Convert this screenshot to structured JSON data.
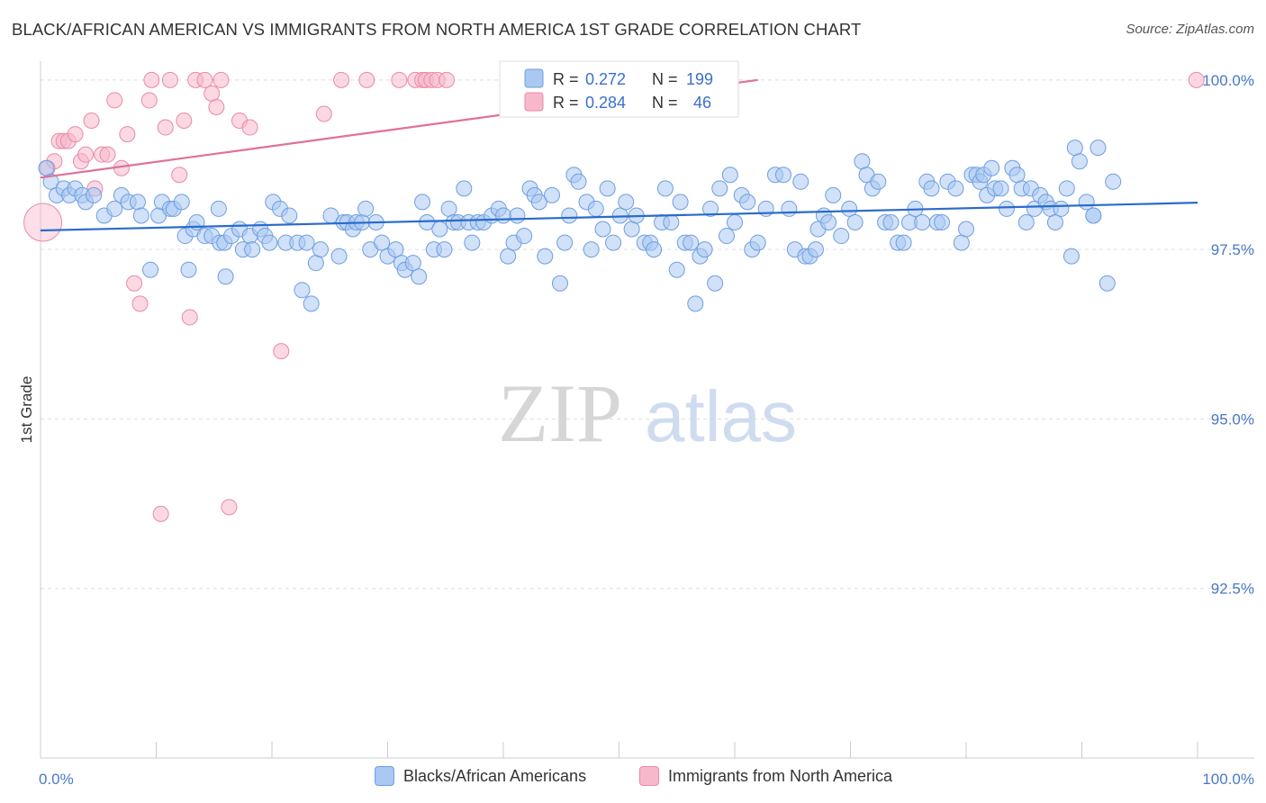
{
  "title": "BLACK/AFRICAN AMERICAN VS IMMIGRANTS FROM NORTH AMERICA 1ST GRADE CORRELATION CHART",
  "source": "Source: ZipAtlas.com",
  "watermark": {
    "zip": "ZIP",
    "atlas": "atlas"
  },
  "colors": {
    "blue_fill": "#a9c8f2",
    "blue_stroke": "#6f9ee0",
    "blue_line": "#2a6bcc",
    "pink_fill": "#f8b8cb",
    "pink_stroke": "#e88aa8",
    "pink_line": "#e0709a",
    "tick_text": "#4a78c8",
    "grid": "#dddddd"
  },
  "legend": {
    "r_label": "R =",
    "n_label": "N =",
    "series": [
      {
        "r": "0.272",
        "n": "199"
      },
      {
        "r": "0.284",
        "n": "46"
      }
    ]
  },
  "bottom_legend": [
    "Blacks/African Americans",
    "Immigrants from North America"
  ],
  "chart_data": {
    "type": "scatter",
    "title": "BLACK/AFRICAN AMERICAN VS IMMIGRANTS FROM NORTH AMERICA 1ST GRADE CORRELATION CHART",
    "xlabel": "",
    "ylabel": "1st Grade",
    "xlim": [
      0,
      100
    ],
    "ylim": [
      90.0,
      100.25
    ],
    "x_tick_labels": [
      "0.0%",
      "100.0%"
    ],
    "y_ticks": [
      100.0,
      97.5,
      95.0,
      92.5
    ],
    "y_tick_labels": [
      "100.0%",
      "97.5%",
      "95.0%",
      "92.5%"
    ],
    "series": [
      {
        "name": "Blacks/African Americans",
        "R": 0.272,
        "N": 199,
        "trend": {
          "x": [
            0,
            100
          ],
          "y": [
            97.78,
            98.19
          ]
        },
        "points": [
          [
            0.5,
            98.7
          ],
          [
            0.9,
            98.5
          ],
          [
            1.4,
            98.3
          ],
          [
            2.0,
            98.4
          ],
          [
            2.5,
            98.3
          ],
          [
            3.0,
            98.4
          ],
          [
            3.6,
            98.3
          ],
          [
            3.9,
            98.2
          ],
          [
            4.6,
            98.3
          ],
          [
            5.5,
            98.0
          ],
          [
            6.4,
            98.1
          ],
          [
            7.0,
            98.3
          ],
          [
            7.6,
            98.2
          ],
          [
            8.4,
            98.2
          ],
          [
            8.7,
            98.0
          ],
          [
            9.5,
            97.2
          ],
          [
            10.2,
            98.0
          ],
          [
            10.5,
            98.2
          ],
          [
            11.2,
            98.1
          ],
          [
            11.5,
            98.1
          ],
          [
            12.2,
            98.2
          ],
          [
            12.5,
            97.7
          ],
          [
            12.8,
            97.2
          ],
          [
            13.2,
            97.8
          ],
          [
            13.5,
            97.9
          ],
          [
            14.2,
            97.7
          ],
          [
            14.8,
            97.7
          ],
          [
            15.4,
            98.1
          ],
          [
            15.5,
            97.6
          ],
          [
            15.9,
            97.6
          ],
          [
            16.0,
            97.1
          ],
          [
            16.5,
            97.7
          ],
          [
            17.2,
            97.8
          ],
          [
            17.5,
            97.5
          ],
          [
            18.1,
            97.7
          ],
          [
            18.3,
            97.5
          ],
          [
            19.0,
            97.8
          ],
          [
            19.4,
            97.7
          ],
          [
            19.8,
            97.6
          ],
          [
            20.1,
            98.2
          ],
          [
            20.7,
            98.1
          ],
          [
            21.2,
            97.6
          ],
          [
            21.5,
            98.0
          ],
          [
            22.2,
            97.6
          ],
          [
            22.6,
            96.9
          ],
          [
            23.0,
            97.6
          ],
          [
            23.4,
            96.7
          ],
          [
            23.8,
            97.3
          ],
          [
            24.2,
            97.5
          ],
          [
            25.1,
            98.0
          ],
          [
            25.8,
            97.4
          ],
          [
            26.2,
            97.9
          ],
          [
            26.5,
            97.9
          ],
          [
            27.0,
            97.8
          ],
          [
            27.3,
            97.9
          ],
          [
            27.8,
            97.9
          ],
          [
            28.1,
            98.1
          ],
          [
            28.5,
            97.5
          ],
          [
            29.0,
            97.9
          ],
          [
            29.5,
            97.6
          ],
          [
            30.0,
            97.4
          ],
          [
            30.7,
            97.5
          ],
          [
            31.2,
            97.3
          ],
          [
            31.5,
            97.2
          ],
          [
            32.2,
            97.3
          ],
          [
            32.7,
            97.1
          ],
          [
            33.0,
            98.2
          ],
          [
            33.4,
            97.9
          ],
          [
            34.0,
            97.5
          ],
          [
            34.5,
            97.8
          ],
          [
            34.9,
            97.5
          ],
          [
            35.3,
            98.1
          ],
          [
            35.7,
            97.9
          ],
          [
            36.1,
            97.9
          ],
          [
            36.6,
            98.4
          ],
          [
            37.0,
            97.9
          ],
          [
            37.3,
            97.6
          ],
          [
            37.8,
            97.9
          ],
          [
            38.3,
            97.9
          ],
          [
            39.0,
            98.0
          ],
          [
            39.6,
            98.1
          ],
          [
            40.0,
            98.0
          ],
          [
            40.4,
            97.4
          ],
          [
            40.9,
            97.6
          ],
          [
            41.2,
            98.0
          ],
          [
            41.8,
            97.7
          ],
          [
            42.3,
            98.4
          ],
          [
            42.7,
            98.3
          ],
          [
            43.1,
            98.2
          ],
          [
            43.6,
            97.4
          ],
          [
            44.2,
            98.3
          ],
          [
            44.9,
            97.0
          ],
          [
            45.3,
            97.6
          ],
          [
            45.7,
            98.0
          ],
          [
            46.1,
            98.6
          ],
          [
            46.5,
            98.5
          ],
          [
            47.2,
            98.2
          ],
          [
            47.6,
            97.5
          ],
          [
            48.0,
            98.1
          ],
          [
            48.6,
            97.8
          ],
          [
            49.0,
            98.4
          ],
          [
            49.5,
            97.6
          ],
          [
            50.1,
            98.0
          ],
          [
            50.6,
            98.2
          ],
          [
            51.1,
            97.8
          ],
          [
            51.5,
            98.0
          ],
          [
            52.2,
            97.6
          ],
          [
            52.7,
            97.6
          ],
          [
            53.0,
            97.5
          ],
          [
            53.7,
            97.9
          ],
          [
            54.0,
            98.4
          ],
          [
            54.5,
            97.9
          ],
          [
            55.0,
            97.2
          ],
          [
            55.3,
            98.2
          ],
          [
            55.7,
            97.6
          ],
          [
            56.2,
            97.6
          ],
          [
            56.6,
            96.7
          ],
          [
            57.0,
            97.4
          ],
          [
            57.4,
            97.5
          ],
          [
            57.9,
            98.1
          ],
          [
            58.3,
            97.0
          ],
          [
            58.7,
            98.4
          ],
          [
            59.3,
            97.7
          ],
          [
            59.6,
            98.6
          ],
          [
            60.0,
            97.9
          ],
          [
            60.6,
            98.3
          ],
          [
            61.1,
            98.2
          ],
          [
            61.5,
            97.5
          ],
          [
            62.0,
            97.6
          ],
          [
            62.7,
            98.1
          ],
          [
            63.5,
            98.6
          ],
          [
            64.2,
            98.6
          ],
          [
            64.7,
            98.1
          ],
          [
            65.2,
            97.5
          ],
          [
            65.7,
            98.5
          ],
          [
            66.1,
            97.4
          ],
          [
            66.5,
            97.4
          ],
          [
            67.0,
            97.5
          ],
          [
            67.2,
            97.8
          ],
          [
            67.7,
            98.0
          ],
          [
            68.1,
            97.9
          ],
          [
            68.5,
            98.3
          ],
          [
            69.2,
            97.7
          ],
          [
            69.9,
            98.1
          ],
          [
            70.4,
            97.9
          ],
          [
            71.0,
            98.8
          ],
          [
            71.4,
            98.6
          ],
          [
            71.9,
            98.4
          ],
          [
            72.4,
            98.5
          ],
          [
            73.0,
            97.9
          ],
          [
            73.5,
            97.9
          ],
          [
            74.1,
            97.6
          ],
          [
            74.6,
            97.6
          ],
          [
            75.1,
            97.9
          ],
          [
            75.6,
            98.1
          ],
          [
            76.2,
            97.9
          ],
          [
            76.6,
            98.5
          ],
          [
            77.0,
            98.4
          ],
          [
            77.5,
            97.9
          ],
          [
            77.9,
            97.9
          ],
          [
            78.4,
            98.5
          ],
          [
            79.1,
            98.4
          ],
          [
            79.6,
            97.6
          ],
          [
            80.0,
            97.8
          ],
          [
            80.5,
            98.6
          ],
          [
            80.9,
            98.6
          ],
          [
            81.2,
            98.5
          ],
          [
            81.5,
            98.6
          ],
          [
            81.8,
            98.3
          ],
          [
            82.2,
            98.7
          ],
          [
            82.5,
            98.4
          ],
          [
            83.0,
            98.4
          ],
          [
            83.5,
            98.1
          ],
          [
            84.0,
            98.7
          ],
          [
            84.4,
            98.6
          ],
          [
            84.8,
            98.4
          ],
          [
            85.2,
            97.9
          ],
          [
            85.6,
            98.4
          ],
          [
            85.9,
            98.1
          ],
          [
            86.4,
            98.3
          ],
          [
            86.9,
            98.2
          ],
          [
            87.3,
            98.1
          ],
          [
            87.7,
            97.9
          ],
          [
            88.2,
            98.1
          ],
          [
            88.7,
            98.4
          ],
          [
            89.1,
            97.4
          ],
          [
            89.4,
            99.0
          ],
          [
            89.8,
            98.8
          ],
          [
            90.4,
            98.2
          ],
          [
            91.0,
            98.0
          ],
          [
            91.4,
            99.0
          ],
          [
            92.2,
            97.0
          ],
          [
            92.7,
            98.5
          ],
          [
            91.0,
            98.0
          ]
        ]
      },
      {
        "name": "Immigrants from North America",
        "R": 0.284,
        "N": 46,
        "trend": {
          "x": [
            0,
            62
          ],
          "y": [
            98.56,
            100.0
          ]
        },
        "points": [
          [
            0.2,
            97.9
          ],
          [
            0.6,
            98.7
          ],
          [
            1.2,
            98.8
          ],
          [
            1.6,
            99.1
          ],
          [
            2.0,
            99.1
          ],
          [
            2.4,
            99.1
          ],
          [
            3.0,
            99.2
          ],
          [
            3.5,
            98.8
          ],
          [
            3.9,
            98.9
          ],
          [
            4.4,
            99.4
          ],
          [
            4.7,
            98.4
          ],
          [
            5.3,
            98.9
          ],
          [
            5.8,
            98.9
          ],
          [
            6.4,
            99.7
          ],
          [
            7.0,
            98.7
          ],
          [
            7.5,
            99.2
          ],
          [
            8.1,
            97.0
          ],
          [
            8.6,
            96.7
          ],
          [
            9.4,
            99.7
          ],
          [
            9.6,
            100.0
          ],
          [
            10.4,
            93.6
          ],
          [
            10.8,
            99.3
          ],
          [
            11.2,
            100.0
          ],
          [
            12.0,
            98.6
          ],
          [
            12.4,
            99.4
          ],
          [
            12.9,
            96.5
          ],
          [
            13.4,
            100.0
          ],
          [
            14.2,
            100.0
          ],
          [
            14.8,
            99.8
          ],
          [
            15.2,
            99.6
          ],
          [
            15.6,
            100.0
          ],
          [
            16.3,
            93.7
          ],
          [
            17.2,
            99.4
          ],
          [
            18.1,
            99.3
          ],
          [
            20.8,
            96.0
          ],
          [
            24.5,
            99.5
          ],
          [
            26.0,
            100.0
          ],
          [
            28.2,
            100.0
          ],
          [
            31.0,
            100.0
          ],
          [
            32.4,
            100.0
          ],
          [
            33.0,
            100.0
          ],
          [
            33.3,
            100.0
          ],
          [
            33.8,
            100.0
          ],
          [
            34.3,
            100.0
          ],
          [
            35.1,
            100.0
          ],
          [
            99.9,
            100.0
          ]
        ]
      }
    ]
  }
}
